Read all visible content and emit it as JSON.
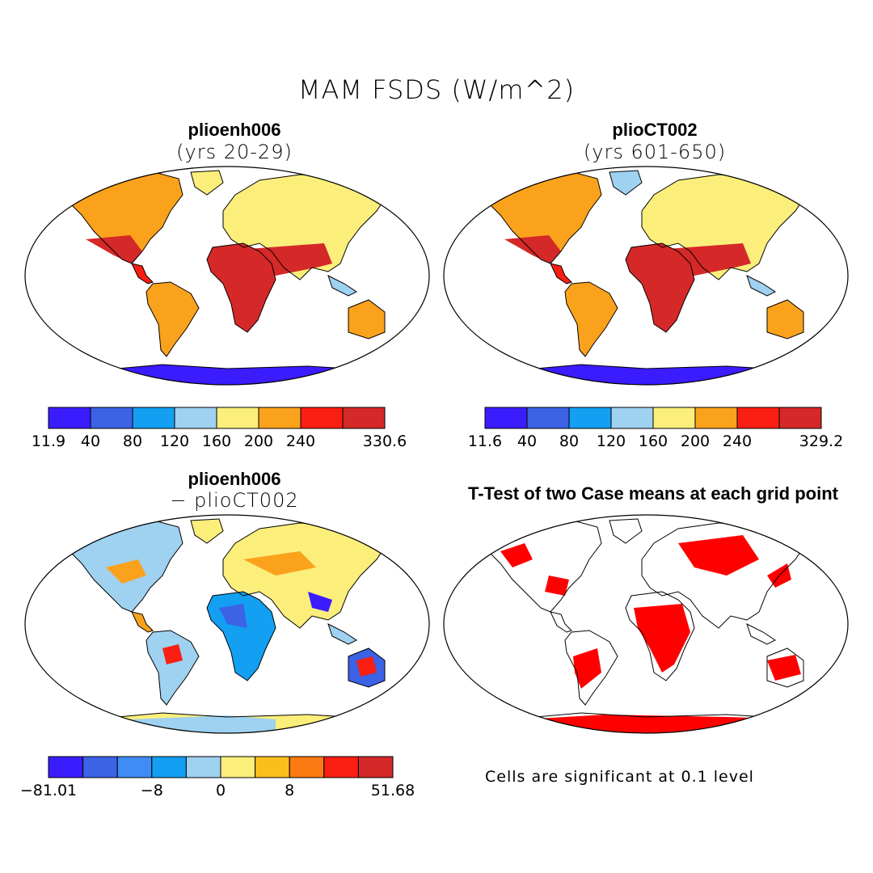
{
  "figure": {
    "title": "MAM FSDS (W/m^2)"
  },
  "panels": [
    {
      "id": "top-left",
      "title": "plioenh006",
      "subtitle": "(yrs 20-29)",
      "kind": "absolute"
    },
    {
      "id": "top-right",
      "title": "plioCT002",
      "subtitle": "(yrs 601-650)",
      "kind": "absolute"
    },
    {
      "id": "bottom-left",
      "title": "plioenh006",
      "subtitle": "− plioCT002",
      "kind": "difference"
    },
    {
      "id": "bottom-right",
      "title": "T-Test of two Case means at each grid point",
      "subtitle": "",
      "kind": "significance"
    }
  ],
  "colorbars": [
    {
      "id": "cb1",
      "colors": [
        "#3b1cff",
        "#3c62e6",
        "#139ff2",
        "#9fd1f0",
        "#fbee7b",
        "#fba21c",
        "#fb1e12",
        "#d52828"
      ],
      "labels": [
        {
          "text": "11.9",
          "index": 0
        },
        {
          "text": "40",
          "index": 1
        },
        {
          "text": "80",
          "index": 2
        },
        {
          "text": "120",
          "index": 3
        },
        {
          "text": "160",
          "index": 4
        },
        {
          "text": "200",
          "index": 5
        },
        {
          "text": "240",
          "index": 6
        },
        {
          "text": "330.6",
          "index": 8
        }
      ]
    },
    {
      "id": "cb2",
      "colors": [
        "#3b1cff",
        "#3c62e6",
        "#139ff2",
        "#9fd1f0",
        "#fbee7b",
        "#fba21c",
        "#fb1e12",
        "#d52828"
      ],
      "labels": [
        {
          "text": "11.6",
          "index": 0
        },
        {
          "text": "40",
          "index": 1
        },
        {
          "text": "80",
          "index": 2
        },
        {
          "text": "120",
          "index": 3
        },
        {
          "text": "160",
          "index": 4
        },
        {
          "text": "200",
          "index": 5
        },
        {
          "text": "240",
          "index": 6
        },
        {
          "text": "329.2",
          "index": 8
        }
      ]
    },
    {
      "id": "cb3",
      "colors": [
        "#3b1cff",
        "#3c62e6",
        "#3f8cf4",
        "#139ff2",
        "#9fd1f0",
        "#fbee7b",
        "#fbbf1c",
        "#fb7a12",
        "#fb1e12",
        "#d52828"
      ],
      "labels": [
        {
          "text": "−81.01",
          "index": 0
        },
        {
          "text": "−8",
          "index": 3
        },
        {
          "text": "0",
          "index": 5
        },
        {
          "text": "8",
          "index": 7
        },
        {
          "text": "51.68",
          "index": 10
        }
      ]
    }
  ],
  "significance_note": "Cells are significant at 0.1 level",
  "colors": {
    "significant": "#ff0000",
    "land_outline": "#000000"
  },
  "chart_data": [
    {
      "type": "heatmap",
      "title": "plioenh006",
      "subtitle": "(yrs 20-29)",
      "variable": "MAM FSDS",
      "units": "W/m^2",
      "min": 11.9,
      "max": 330.6,
      "levels": [
        40,
        80,
        120,
        160,
        200,
        240
      ]
    },
    {
      "type": "heatmap",
      "title": "plioCT002",
      "subtitle": "(yrs 601-650)",
      "variable": "MAM FSDS",
      "units": "W/m^2",
      "min": 11.6,
      "max": 329.2,
      "levels": [
        40,
        80,
        120,
        160,
        200,
        240
      ]
    },
    {
      "type": "heatmap",
      "title": "plioenh006 − plioCT002",
      "variable": "MAM FSDS difference",
      "units": "W/m^2",
      "min": -81.01,
      "max": 51.68,
      "labeled_levels": [
        -8,
        0,
        8
      ]
    },
    {
      "type": "heatmap",
      "title": "T-Test of two Case means at each grid point",
      "note": "Cells are significant at 0.1 level",
      "significance_level": 0.1
    }
  ]
}
